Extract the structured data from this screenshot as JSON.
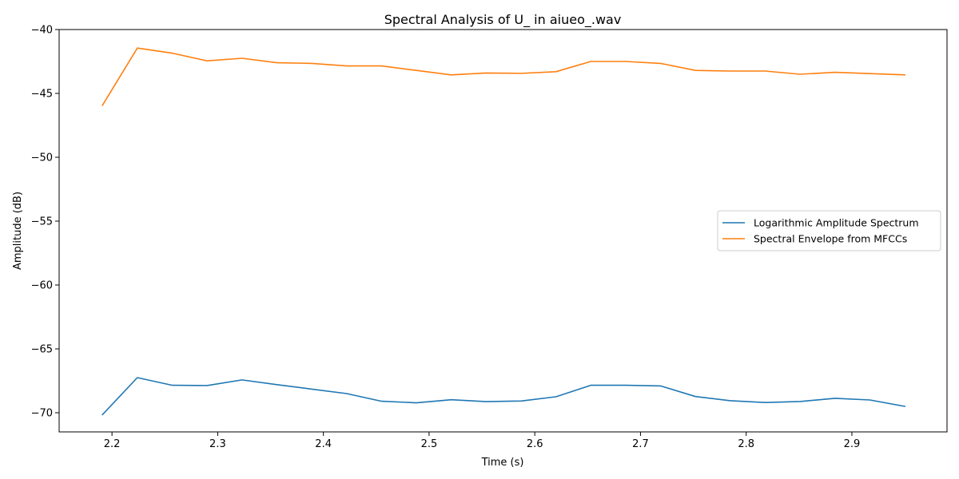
{
  "chart_data": {
    "type": "line",
    "title": "Spectral Analysis of U_ in aiueo_.wav",
    "xlabel": "Time (s)",
    "ylabel": "Amplitude (dB)",
    "xlim": [
      2.15,
      2.99
    ],
    "ylim": [
      -71.5,
      -40
    ],
    "xticks": [
      2.2,
      2.3,
      2.4,
      2.5,
      2.6,
      2.7,
      2.8,
      2.9
    ],
    "xtick_labels": [
      "2.2",
      "2.3",
      "2.4",
      "2.5",
      "2.6",
      "2.7",
      "2.8",
      "2.9"
    ],
    "yticks": [
      -70,
      -65,
      -60,
      -55,
      -50,
      -45,
      -40
    ],
    "ytick_labels": [
      "−70",
      "−65",
      "−60",
      "−55",
      "−50",
      "−45",
      "−40"
    ],
    "grid": false,
    "legend_position": "center-right",
    "x": [
      2.191,
      2.224,
      2.257,
      2.29,
      2.323,
      2.356,
      2.389,
      2.422,
      2.455,
      2.488,
      2.521,
      2.554,
      2.587,
      2.62,
      2.653,
      2.686,
      2.719,
      2.752,
      2.785,
      2.818,
      2.851,
      2.884,
      2.917,
      2.95
    ],
    "series": [
      {
        "name": "Logarithmic Amplitude Spectrum",
        "color": "#1f77b4",
        "values": [
          -70.15,
          -67.25,
          -67.85,
          -67.87,
          -67.43,
          -67.8,
          -68.15,
          -68.5,
          -69.1,
          -69.22,
          -68.98,
          -69.13,
          -69.08,
          -68.75,
          -67.85,
          -67.85,
          -67.9,
          -68.73,
          -69.06,
          -69.2,
          -69.12,
          -68.87,
          -69.0,
          -69.5
        ]
      },
      {
        "name": "Spectral Envelope from MFCCs",
        "color": "#ff7f0e",
        "values": [
          -45.93,
          -41.45,
          -41.85,
          -42.45,
          -42.25,
          -42.6,
          -42.65,
          -42.85,
          -42.85,
          -43.2,
          -43.55,
          -43.4,
          -43.43,
          -43.3,
          -42.5,
          -42.5,
          -42.65,
          -43.2,
          -43.25,
          -43.25,
          -43.5,
          -43.35,
          -43.45,
          -43.55
        ]
      }
    ]
  }
}
